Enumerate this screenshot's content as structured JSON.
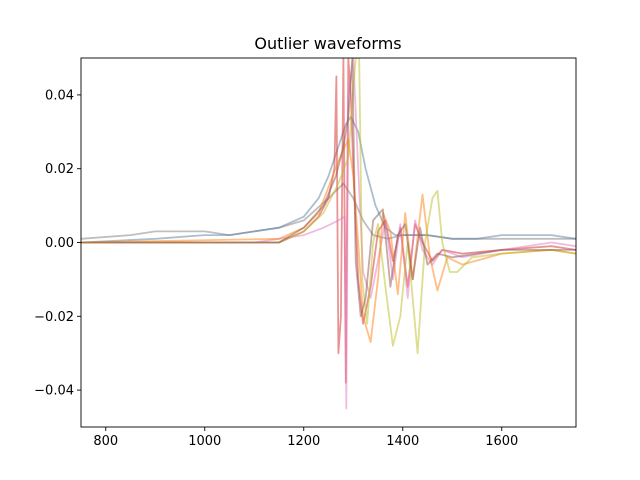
{
  "chart_data": {
    "type": "line",
    "title": "Outlier waveforms",
    "xlabel": "",
    "ylabel": "",
    "xlim": [
      750,
      1750
    ],
    "ylim": [
      -0.05,
      0.05
    ],
    "xticks": [
      800,
      1000,
      1200,
      1400,
      1600
    ],
    "yticks": [
      -0.04,
      -0.02,
      0.0,
      0.02,
      0.04
    ],
    "ytick_labels": [
      "−0.04",
      "−0.02",
      "0.00",
      "0.02",
      "0.04"
    ],
    "grid": false,
    "legend": "none",
    "series": [
      {
        "color": "#7f7f7f",
        "points": [
          [
            750,
            0.001
          ],
          [
            850,
            0.002
          ],
          [
            900,
            0.003
          ],
          [
            950,
            0.003
          ],
          [
            1000,
            0.003
          ],
          [
            1050,
            0.002
          ],
          [
            1100,
            0.003
          ],
          [
            1150,
            0.004
          ],
          [
            1200,
            0.006
          ],
          [
            1250,
            0.012
          ],
          [
            1280,
            0.016
          ],
          [
            1300,
            0.012
          ],
          [
            1320,
            0.006
          ],
          [
            1340,
            0.002
          ],
          [
            1370,
            0.001
          ],
          [
            1400,
            0.002
          ],
          [
            1450,
            0.002
          ],
          [
            1500,
            0.001
          ],
          [
            1600,
            0.001
          ],
          [
            1750,
            0.001
          ]
        ]
      },
      {
        "color": "#5a7fa0",
        "points": [
          [
            750,
            0.0
          ],
          [
            900,
            0.001
          ],
          [
            1000,
            0.002
          ],
          [
            1050,
            0.002
          ],
          [
            1100,
            0.003
          ],
          [
            1150,
            0.004
          ],
          [
            1200,
            0.007
          ],
          [
            1230,
            0.012
          ],
          [
            1250,
            0.018
          ],
          [
            1270,
            0.026
          ],
          [
            1285,
            0.032
          ],
          [
            1295,
            0.034
          ],
          [
            1310,
            0.03
          ],
          [
            1325,
            0.02
          ],
          [
            1345,
            0.01
          ],
          [
            1365,
            0.004
          ],
          [
            1385,
            0.002
          ],
          [
            1400,
            0.002
          ],
          [
            1450,
            0.002
          ],
          [
            1500,
            0.001
          ],
          [
            1550,
            0.001
          ],
          [
            1600,
            0.002
          ],
          [
            1700,
            0.002
          ],
          [
            1750,
            0.001
          ]
        ]
      },
      {
        "color": "#d62728",
        "points": [
          [
            750,
            0.0
          ],
          [
            1150,
            0.0
          ],
          [
            1200,
            0.003
          ],
          [
            1230,
            0.007
          ],
          [
            1250,
            0.012
          ],
          [
            1262,
            0.02
          ],
          [
            1266,
            0.045
          ],
          [
            1270,
            -0.03
          ],
          [
            1275,
            -0.02
          ],
          [
            1280,
            0.05
          ],
          [
            1285,
            -0.038
          ],
          [
            1290,
            0.05
          ],
          [
            1295,
            0.04
          ],
          [
            1300,
            0.02
          ],
          [
            1310,
            -0.01
          ],
          [
            1320,
            -0.022
          ],
          [
            1335,
            -0.012
          ],
          [
            1350,
            0.003
          ],
          [
            1365,
            0.006
          ],
          [
            1380,
            -0.005
          ],
          [
            1395,
            0.004
          ],
          [
            1410,
            -0.012
          ],
          [
            1425,
            0.005
          ],
          [
            1440,
            0.0
          ],
          [
            1460,
            -0.005
          ],
          [
            1480,
            -0.002
          ],
          [
            1520,
            -0.003
          ],
          [
            1600,
            -0.002
          ],
          [
            1700,
            -0.001
          ],
          [
            1750,
            -0.002
          ]
        ]
      },
      {
        "color": "#e377c2",
        "points": [
          [
            750,
            0.0
          ],
          [
            1100,
            0.0
          ],
          [
            1150,
            0.001
          ],
          [
            1200,
            0.002
          ],
          [
            1240,
            0.004
          ],
          [
            1270,
            0.006
          ],
          [
            1283,
            0.007
          ],
          [
            1286,
            -0.045
          ],
          [
            1290,
            0.04
          ],
          [
            1300,
            0.05
          ],
          [
            1310,
            0.02
          ],
          [
            1320,
            -0.008
          ],
          [
            1335,
            -0.015
          ],
          [
            1350,
            -0.005
          ],
          [
            1365,
            0.006
          ],
          [
            1380,
            -0.01
          ],
          [
            1395,
            0.005
          ],
          [
            1410,
            -0.015
          ],
          [
            1425,
            0.006
          ],
          [
            1440,
            -0.002
          ],
          [
            1460,
            -0.006
          ],
          [
            1480,
            -0.002
          ],
          [
            1520,
            -0.004
          ],
          [
            1600,
            -0.002
          ],
          [
            1700,
            0.0
          ],
          [
            1750,
            -0.001
          ]
        ]
      },
      {
        "color": "#ff7f0e",
        "points": [
          [
            750,
            0.0
          ],
          [
            1150,
            0.001
          ],
          [
            1200,
            0.004
          ],
          [
            1230,
            0.008
          ],
          [
            1250,
            0.015
          ],
          [
            1270,
            0.022
          ],
          [
            1290,
            0.028
          ],
          [
            1300,
            0.018
          ],
          [
            1310,
            0.0
          ],
          [
            1320,
            -0.02
          ],
          [
            1335,
            -0.027
          ],
          [
            1350,
            -0.01
          ],
          [
            1360,
            0.008
          ],
          [
            1375,
            0.003
          ],
          [
            1390,
            -0.014
          ],
          [
            1405,
            0.008
          ],
          [
            1420,
            -0.01
          ],
          [
            1440,
            0.013
          ],
          [
            1455,
            -0.004
          ],
          [
            1470,
            -0.013
          ],
          [
            1490,
            -0.004
          ],
          [
            1520,
            -0.006
          ],
          [
            1600,
            -0.003
          ],
          [
            1700,
            -0.002
          ],
          [
            1750,
            -0.003
          ]
        ]
      },
      {
        "color": "#bcbd22",
        "points": [
          [
            750,
            0.0
          ],
          [
            1150,
            0.0
          ],
          [
            1200,
            0.003
          ],
          [
            1240,
            0.008
          ],
          [
            1270,
            0.016
          ],
          [
            1290,
            0.023
          ],
          [
            1305,
            0.05
          ],
          [
            1312,
            0.05
          ],
          [
            1318,
            -0.01
          ],
          [
            1328,
            -0.022
          ],
          [
            1340,
            0.0
          ],
          [
            1350,
            0.005
          ],
          [
            1365,
            -0.012
          ],
          [
            1380,
            -0.028
          ],
          [
            1395,
            -0.02
          ],
          [
            1410,
            0.0
          ],
          [
            1430,
            -0.03
          ],
          [
            1445,
            0.0
          ],
          [
            1460,
            0.012
          ],
          [
            1470,
            0.014
          ],
          [
            1480,
            0.0
          ],
          [
            1495,
            -0.008
          ],
          [
            1510,
            -0.008
          ],
          [
            1540,
            -0.004
          ],
          [
            1600,
            -0.003
          ],
          [
            1700,
            -0.002
          ],
          [
            1750,
            -0.003
          ]
        ]
      },
      {
        "color": "#8c564b",
        "points": [
          [
            750,
            0.0
          ],
          [
            1150,
            0.0
          ],
          [
            1200,
            0.004
          ],
          [
            1240,
            0.01
          ],
          [
            1265,
            0.018
          ],
          [
            1280,
            0.026
          ],
          [
            1290,
            0.034
          ],
          [
            1298,
            0.05
          ],
          [
            1305,
            -0.005
          ],
          [
            1315,
            -0.02
          ],
          [
            1325,
            -0.015
          ],
          [
            1340,
            0.006
          ],
          [
            1360,
            0.009
          ],
          [
            1375,
            -0.012
          ],
          [
            1390,
            0.002
          ],
          [
            1405,
            0.005
          ],
          [
            1420,
            -0.01
          ],
          [
            1435,
            0.004
          ],
          [
            1450,
            -0.006
          ],
          [
            1470,
            -0.003
          ],
          [
            1500,
            -0.004
          ],
          [
            1600,
            -0.002
          ],
          [
            1750,
            -0.002
          ]
        ]
      }
    ]
  }
}
